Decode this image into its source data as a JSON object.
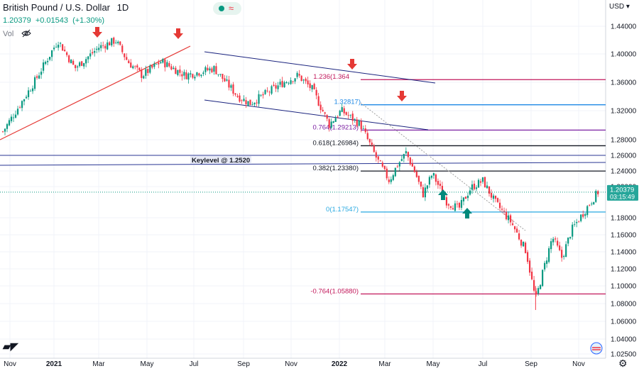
{
  "header": {
    "title": "British Pound / U.S. Dollar",
    "interval": "1D",
    "last": "1.20379",
    "change": "+0.01543",
    "change_pct": "(+1.30%)",
    "volume_label": "Vol"
  },
  "currency": "USD",
  "price_tag": {
    "price": "1.20379",
    "countdown": "03:15:49"
  },
  "chart_data": {
    "type": "candlestick",
    "symbol": "GBPUSD",
    "interval": "1D",
    "x_tick_labels": [
      "Nov",
      "2021",
      "Mar",
      "May",
      "Jul",
      "Sep",
      "Nov",
      "2022",
      "Mar",
      "May",
      "Jul",
      "Sep",
      "Nov"
    ],
    "y_tick_labels": [
      "1.44000",
      "1.40000",
      "1.36000",
      "1.32000",
      "1.28000",
      "1.26000",
      "1.24000",
      "1.22000",
      "1.18000",
      "1.16000",
      "1.14000",
      "1.12000",
      "1.10000",
      "1.08000",
      "1.06000",
      "1.04000",
      "1.02500"
    ],
    "ylim": [
      1.02,
      1.46
    ],
    "price_path": [
      {
        "month": 0,
        "close": 1.29
      },
      {
        "month": 1.3,
        "close": 1.36
      },
      {
        "month": 2.3,
        "close": 1.42
      },
      {
        "month": 3,
        "close": 1.38
      },
      {
        "month": 4,
        "close": 1.41
      },
      {
        "month": 4.7,
        "close": 1.42
      },
      {
        "month": 5.2,
        "close": 1.39
      },
      {
        "month": 5.8,
        "close": 1.37
      },
      {
        "month": 6.6,
        "close": 1.39
      },
      {
        "month": 7.6,
        "close": 1.37
      },
      {
        "month": 8.8,
        "close": 1.38
      },
      {
        "month": 9.8,
        "close": 1.34
      },
      {
        "month": 10.3,
        "close": 1.33
      },
      {
        "month": 11.7,
        "close": 1.36
      },
      {
        "month": 12.3,
        "close": 1.37
      },
      {
        "month": 12.9,
        "close": 1.35
      },
      {
        "month": 13.6,
        "close": 1.3
      },
      {
        "month": 14.1,
        "close": 1.32
      },
      {
        "month": 14.9,
        "close": 1.3
      },
      {
        "month": 15.6,
        "close": 1.25
      },
      {
        "month": 16.1,
        "close": 1.22
      },
      {
        "month": 16.4,
        "close": 1.24
      },
      {
        "month": 16.8,
        "close": 1.26
      },
      {
        "month": 17.2,
        "close": 1.23
      },
      {
        "month": 17.5,
        "close": 1.2
      },
      {
        "month": 17.9,
        "close": 1.23
      },
      {
        "month": 18.5,
        "close": 1.19
      },
      {
        "month": 19.0,
        "close": 1.18
      },
      {
        "month": 19.5,
        "close": 1.21
      },
      {
        "month": 20.0,
        "close": 1.22
      },
      {
        "month": 20.5,
        "close": 1.19
      },
      {
        "month": 21.2,
        "close": 1.16
      },
      {
        "month": 21.8,
        "close": 1.12
      },
      {
        "month": 22.2,
        "close": 1.05
      },
      {
        "month": 22.5,
        "close": 1.09
      },
      {
        "month": 22.9,
        "close": 1.14
      },
      {
        "month": 23.3,
        "close": 1.11
      },
      {
        "month": 23.7,
        "close": 1.15
      },
      {
        "month": 24.1,
        "close": 1.17
      },
      {
        "month": 24.5,
        "close": 1.19
      },
      {
        "month": 24.8,
        "close": 1.20379
      }
    ],
    "levels": [
      {
        "label": "1.236(1.36400)",
        "price": 1.364,
        "color": "#c2185b",
        "label_text": "1.236(1.364"
      },
      {
        "label": "1.32817",
        "price": 1.32817,
        "color": "#1e88e5",
        "label_text": "1.32817)"
      },
      {
        "label": "0.764(1.29213)",
        "price": 1.29213,
        "color": "#7b1fa2",
        "label_text": "0.764(1.29213)"
      },
      {
        "label": "0.618(1.26984)",
        "price": 1.26984,
        "color": "#131722",
        "label_text": "0.618(1.26984)"
      },
      {
        "label": "0.382(1.23380)",
        "price": 1.2338,
        "color": "#131722",
        "label_text": "0.382(1.23380)"
      },
      {
        "label": "0(1.17547)",
        "price": 1.17547,
        "color": "#29a9e1",
        "label_text": "0(1.17547)"
      },
      {
        "label": "-0.764(1.05880)",
        "price": 1.0588,
        "color": "#c2185b",
        "label_text": "-0.764(1.05880)"
      }
    ],
    "keylevel": {
      "label": "Keylevel @ 1.2520"
    },
    "annotations": {
      "down_arrows": 4,
      "up_arrows": 2
    },
    "colors": {
      "up": "#089981",
      "down": "#f23645",
      "trendline": "#e53935",
      "channel": "#1a237e",
      "keylevel": "#283593"
    }
  }
}
